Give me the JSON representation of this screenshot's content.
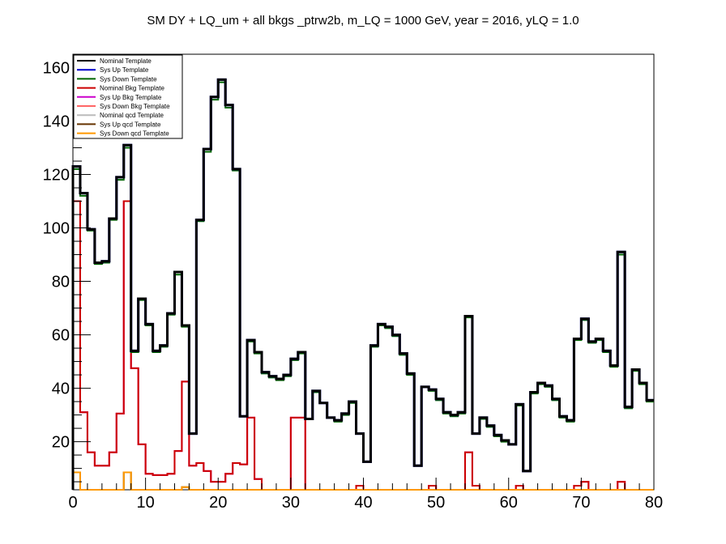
{
  "chart_data": {
    "type": "step-histogram",
    "title": "SM DY + LQ_um + all bkgs  _ptrw2b, m_LQ = 1000 GeV, year = 2016, yLQ = 1.0",
    "xlim": [
      0,
      80
    ],
    "ylim": [
      2,
      165
    ],
    "x_ticks": [
      0,
      10,
      20,
      30,
      40,
      50,
      60,
      70,
      80
    ],
    "y_ticks": [
      20,
      40,
      60,
      80,
      100,
      120,
      140,
      160
    ],
    "x_tick_labels": [
      "0",
      "10",
      "20",
      "30",
      "40",
      "50",
      "60",
      "70",
      "80"
    ],
    "y_tick_labels": [
      "20",
      "40",
      "60",
      "80",
      "100",
      "120",
      "140",
      "160"
    ],
    "bin_edges_start": 0,
    "bin_width": 1,
    "legend_position": "top-left",
    "grid": false,
    "series": [
      {
        "name": "Nominal Template",
        "color": "#000000",
        "values": [
          123,
          113,
          99.5,
          87,
          87.5,
          103.5,
          119,
          131,
          54,
          73.5,
          64,
          54,
          56,
          68,
          83.5,
          63.5,
          23,
          103,
          129.5,
          149,
          155.5,
          146,
          122,
          29.5,
          58,
          53.5,
          46,
          44.5,
          43.5,
          45,
          51,
          53.5,
          28.5,
          39,
          34.5,
          29,
          28,
          30.5,
          35,
          23,
          12.5,
          56,
          64,
          63,
          60,
          53,
          45.5,
          11,
          40.5,
          39.5,
          36,
          31,
          30,
          31,
          67,
          23,
          29,
          26,
          22.5,
          20.5,
          19,
          34,
          9,
          38.5,
          42,
          41,
          36,
          29.5,
          28,
          58.5,
          66,
          57.5,
          58.5,
          54,
          48.5,
          91,
          33,
          47,
          42,
          35.5
        ]
      },
      {
        "name": "Sys Up Template",
        "color": "#0000cc",
        "values": [
          123,
          113,
          99.5,
          87,
          87.5,
          103.5,
          119,
          131,
          54,
          73.5,
          64,
          54,
          56,
          68,
          83.5,
          63.5,
          23,
          103,
          129.5,
          149,
          155.5,
          146,
          122,
          29.5,
          58,
          53.5,
          46,
          44.5,
          43.5,
          45,
          51,
          53.5,
          28.5,
          39,
          34.5,
          29,
          28,
          30.5,
          35,
          23,
          12.5,
          56,
          64,
          63,
          60,
          53,
          45.5,
          11,
          40.5,
          39.5,
          36,
          31,
          30,
          31,
          67,
          23,
          29,
          26,
          22.5,
          20.5,
          19,
          34,
          9,
          38.5,
          42,
          41,
          36,
          29.5,
          28,
          58.5,
          66,
          57.5,
          58.5,
          54,
          48.5,
          91,
          33,
          47,
          42,
          35.5
        ]
      },
      {
        "name": "Sys Down Template",
        "color": "#006600",
        "values": [
          122,
          112,
          99,
          86.5,
          87,
          103,
          118,
          130,
          53.5,
          73,
          63.5,
          53.5,
          55.5,
          67.5,
          82.5,
          63,
          23,
          102.5,
          128.5,
          148,
          154.5,
          145,
          121.5,
          29.5,
          57.5,
          53,
          45.5,
          44,
          43,
          44.5,
          50.5,
          53,
          28.5,
          38.5,
          34.5,
          29,
          27.5,
          30,
          34.5,
          23,
          12.5,
          55.5,
          63.5,
          62.5,
          59.5,
          52.5,
          45,
          11,
          40.5,
          39,
          35.5,
          30.5,
          29.5,
          30.5,
          66.5,
          23,
          28.5,
          25.5,
          22,
          20,
          19,
          33.5,
          9,
          38,
          41.5,
          40.5,
          35.5,
          29,
          27.5,
          58,
          65.5,
          57,
          58,
          53.5,
          48,
          90,
          32.5,
          46.5,
          41.5,
          35
        ]
      },
      {
        "name": "Nominal Bkg Template",
        "color": "#cc0000",
        "values": [
          110,
          31,
          16,
          11,
          11,
          16,
          30.5,
          110,
          47.5,
          19,
          8,
          7.5,
          7.5,
          8,
          16.5,
          42.5,
          11,
          12,
          9,
          5,
          5,
          8,
          12,
          11.5,
          29,
          6,
          1.5,
          1.5,
          1.5,
          1.5,
          29,
          29,
          1.5,
          1.5,
          1.5,
          1.5,
          1.5,
          1.5,
          1.5,
          3.5,
          1.5,
          1.5,
          1.5,
          1.5,
          1.5,
          1.5,
          1.5,
          1.5,
          1.5,
          3.5,
          1.5,
          1.5,
          1.5,
          1.5,
          16,
          3.5,
          1.5,
          1.5,
          1.5,
          1.5,
          1.5,
          3.5,
          1.5,
          1.5,
          1.5,
          1.5,
          1.5,
          1.5,
          1.5,
          3.5,
          5,
          1.5,
          1.5,
          1.5,
          1.5,
          5,
          1.5,
          1.5,
          1.5,
          1.5
        ]
      },
      {
        "name": "Sys Up Bkg Template",
        "color": "#cc00cc",
        "values": [
          110,
          31,
          16,
          11,
          11,
          16,
          30.5,
          110,
          47.5,
          19,
          8,
          7.5,
          7.5,
          8,
          16.5,
          42.5,
          11,
          12,
          9,
          5,
          5,
          8,
          12,
          11.5,
          29,
          6,
          1.5,
          1.5,
          1.5,
          1.5,
          29,
          29,
          1.5,
          1.5,
          1.5,
          1.5,
          1.5,
          1.5,
          1.5,
          3.5,
          1.5,
          1.5,
          1.5,
          1.5,
          1.5,
          1.5,
          1.5,
          1.5,
          1.5,
          3.5,
          1.5,
          1.5,
          1.5,
          1.5,
          16,
          3.5,
          1.5,
          1.5,
          1.5,
          1.5,
          1.5,
          3.5,
          1.5,
          1.5,
          1.5,
          1.5,
          1.5,
          1.5,
          1.5,
          3.5,
          5,
          1.5,
          1.5,
          1.5,
          1.5,
          5,
          1.5,
          1.5,
          1.5,
          1.5
        ]
      },
      {
        "name": "Sys Down Bkg Template",
        "color": "#ff6666",
        "values": [
          110,
          31,
          16,
          11,
          11,
          16,
          30.5,
          110,
          47.5,
          19,
          8,
          7.5,
          7.5,
          8,
          16.5,
          42.5,
          11,
          12,
          9,
          5,
          5,
          8,
          12,
          11.5,
          29,
          6,
          1.5,
          1.5,
          1.5,
          1.5,
          29,
          29,
          1.5,
          1.5,
          1.5,
          1.5,
          1.5,
          1.5,
          1.5,
          3.5,
          1.5,
          1.5,
          1.5,
          1.5,
          1.5,
          1.5,
          1.5,
          1.5,
          1.5,
          3.5,
          1.5,
          1.5,
          1.5,
          1.5,
          16,
          3.5,
          1.5,
          1.5,
          1.5,
          1.5,
          1.5,
          3.5,
          1.5,
          1.5,
          1.5,
          1.5,
          1.5,
          1.5,
          1.5,
          3.5,
          5,
          1.5,
          1.5,
          1.5,
          1.5,
          5,
          1.5,
          1.5,
          1.5,
          1.5
        ]
      },
      {
        "name": "Nominal qcd Template",
        "color": "#bbbbbb",
        "values": [
          8.5,
          1.5,
          1.5,
          1.5,
          1.5,
          1.5,
          1.5,
          8.5,
          1.5,
          1.5,
          1.5,
          1.5,
          1.5,
          1.5,
          1.5,
          3,
          1.5,
          1.5,
          1.5,
          1.5,
          1.5,
          1.5,
          1.5,
          1.5,
          1.5,
          1.5,
          1.5,
          1.5,
          1.5,
          1.5,
          1.5,
          1.5,
          1.5,
          1.5,
          1.5,
          1.5,
          1.5,
          1.5,
          1.5,
          1.5,
          1.5,
          1.5,
          1.5,
          1.5,
          1.5,
          1.5,
          1.5,
          1.5,
          1.5,
          1.5,
          1.5,
          1.5,
          1.5,
          1.5,
          1.5,
          1.5,
          1.5,
          1.5,
          1.5,
          1.5,
          1.5,
          1.5,
          1.5,
          1.5,
          1.5,
          1.5,
          1.5,
          1.5,
          1.5,
          1.5,
          1.5,
          1.5,
          1.5,
          1.5,
          1.5,
          1.5,
          1.5,
          1.5,
          1.5,
          1.5
        ]
      },
      {
        "name": "Sys Up qcd Template",
        "color": "#663300",
        "values": [
          8.5,
          1.5,
          1.5,
          1.5,
          1.5,
          1.5,
          1.5,
          8.5,
          1.5,
          1.5,
          1.5,
          1.5,
          1.5,
          1.5,
          1.5,
          3,
          1.5,
          1.5,
          1.5,
          1.5,
          1.5,
          1.5,
          1.5,
          1.5,
          1.5,
          1.5,
          1.5,
          1.5,
          1.5,
          1.5,
          1.5,
          1.5,
          1.5,
          1.5,
          1.5,
          1.5,
          1.5,
          1.5,
          1.5,
          1.5,
          1.5,
          1.5,
          1.5,
          1.5,
          1.5,
          1.5,
          1.5,
          1.5,
          1.5,
          1.5,
          1.5,
          1.5,
          1.5,
          1.5,
          1.5,
          1.5,
          1.5,
          1.5,
          1.5,
          1.5,
          1.5,
          1.5,
          1.5,
          1.5,
          1.5,
          1.5,
          1.5,
          1.5,
          1.5,
          1.5,
          1.5,
          1.5,
          1.5,
          1.5,
          1.5,
          1.5,
          1.5,
          1.5,
          1.5,
          1.5
        ]
      },
      {
        "name": "Sys Down qcd Template",
        "color": "#ff9900",
        "values": [
          8.5,
          1.5,
          1.5,
          1.5,
          1.5,
          1.5,
          1.5,
          8.5,
          1.5,
          1.5,
          1.5,
          1.5,
          1.5,
          1.5,
          1.5,
          3,
          1.5,
          1.5,
          1.5,
          1.5,
          1.5,
          1.5,
          1.5,
          1.5,
          1.5,
          1.5,
          1.5,
          1.5,
          1.5,
          1.5,
          1.5,
          1.5,
          1.5,
          1.5,
          1.5,
          1.5,
          1.5,
          1.5,
          1.5,
          1.5,
          1.5,
          1.5,
          1.5,
          1.5,
          1.5,
          1.5,
          1.5,
          1.5,
          1.5,
          1.5,
          1.5,
          1.5,
          1.5,
          1.5,
          1.5,
          1.5,
          1.5,
          1.5,
          1.5,
          1.5,
          1.5,
          1.5,
          1.5,
          1.5,
          1.5,
          1.5,
          1.5,
          1.5,
          1.5,
          1.5,
          1.5,
          1.5,
          1.5,
          1.5,
          1.5,
          1.5,
          1.5,
          1.5,
          1.5,
          1.5
        ]
      }
    ]
  }
}
